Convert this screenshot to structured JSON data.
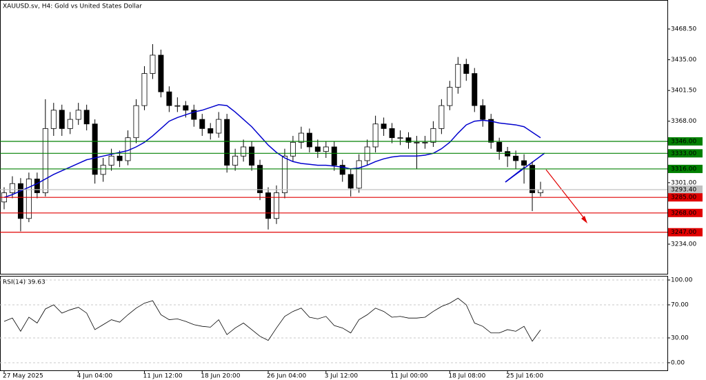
{
  "chart_data": [
    {
      "type": "candlestick",
      "title": "XAUUSD.sv, H4:  Gold vs United States Dollar",
      "categories": [
        "27 May 2025",
        null,
        null,
        null,
        null,
        null,
        null,
        null,
        null,
        "4 Jun 04:00",
        null,
        null,
        null,
        null,
        null,
        null,
        null,
        "11 Jun 12:00",
        null,
        null,
        null,
        null,
        null,
        null,
        "18 Jun 20:00",
        null,
        null,
        null,
        null,
        null,
        null,
        null,
        "26 Jun 04:00",
        null,
        null,
        null,
        null,
        null,
        null,
        "3 Jul 12:00",
        null,
        null,
        null,
        null,
        null,
        null,
        null,
        "11 Jul 00:00",
        null,
        null,
        null,
        null,
        null,
        null,
        "18 Jul 08:00",
        null,
        null,
        null,
        null,
        null,
        null,
        "25 Jul 16:00",
        null,
        null,
        null,
        null
      ],
      "values": [
        [
          3280,
          3296,
          3272,
          3290
        ],
        [
          3290,
          3308,
          3284,
          3300
        ],
        [
          3300,
          3306,
          3248,
          3262
        ],
        [
          3262,
          3312,
          3258,
          3305
        ],
        [
          3305,
          3312,
          3284,
          3290
        ],
        [
          3290,
          3392,
          3286,
          3360
        ],
        [
          3360,
          3388,
          3352,
          3380
        ],
        [
          3380,
          3386,
          3352,
          3360
        ],
        [
          3360,
          3378,
          3354,
          3370
        ],
        [
          3370,
          3388,
          3364,
          3380
        ],
        [
          3380,
          3386,
          3358,
          3365
        ],
        [
          3365,
          3370,
          3300,
          3310
        ],
        [
          3310,
          3328,
          3302,
          3320
        ],
        [
          3320,
          3338,
          3314,
          3330
        ],
        [
          3330,
          3336,
          3318,
          3325
        ],
        [
          3325,
          3358,
          3320,
          3350
        ],
        [
          3350,
          3392,
          3344,
          3385
        ],
        [
          3385,
          3428,
          3380,
          3420
        ],
        [
          3420,
          3452,
          3414,
          3440
        ],
        [
          3440,
          3446,
          3394,
          3400
        ],
        [
          3400,
          3406,
          3378,
          3385
        ],
        [
          3385,
          3394,
          3378,
          3385
        ],
        [
          3385,
          3390,
          3372,
          3380
        ],
        [
          3380,
          3386,
          3362,
          3370
        ],
        [
          3370,
          3376,
          3352,
          3360
        ],
        [
          3360,
          3366,
          3348,
          3355
        ],
        [
          3355,
          3378,
          3350,
          3370
        ],
        [
          3370,
          3376,
          3312,
          3320
        ],
        [
          3320,
          3338,
          3314,
          3330
        ],
        [
          3330,
          3348,
          3324,
          3340
        ],
        [
          3340,
          3346,
          3314,
          3320
        ],
        [
          3320,
          3326,
          3282,
          3290
        ],
        [
          3290,
          3296,
          3250,
          3262
        ],
        [
          3262,
          3298,
          3256,
          3290
        ],
        [
          3290,
          3338,
          3284,
          3330
        ],
        [
          3330,
          3352,
          3324,
          3345
        ],
        [
          3345,
          3362,
          3338,
          3355
        ],
        [
          3355,
          3360,
          3334,
          3340
        ],
        [
          3340,
          3348,
          3328,
          3335
        ],
        [
          3335,
          3346,
          3328,
          3340
        ],
        [
          3340,
          3346,
          3314,
          3320
        ],
        [
          3320,
          3326,
          3302,
          3310
        ],
        [
          3310,
          3316,
          3286,
          3295
        ],
        [
          3295,
          3332,
          3290,
          3325
        ],
        [
          3325,
          3348,
          3320,
          3340
        ],
        [
          3340,
          3374,
          3334,
          3365
        ],
        [
          3365,
          3372,
          3352,
          3360
        ],
        [
          3360,
          3366,
          3344,
          3350
        ],
        [
          3350,
          3358,
          3342,
          3350
        ],
        [
          3350,
          3356,
          3338,
          3345
        ],
        [
          3345,
          3352,
          3316,
          3345
        ],
        [
          3345,
          3352,
          3338,
          3345
        ],
        [
          3345,
          3368,
          3340,
          3360
        ],
        [
          3360,
          3392,
          3354,
          3385
        ],
        [
          3385,
          3412,
          3380,
          3405
        ],
        [
          3405,
          3438,
          3398,
          3430
        ],
        [
          3430,
          3436,
          3412,
          3420
        ],
        [
          3420,
          3426,
          3378,
          3385
        ],
        [
          3385,
          3392,
          3362,
          3370
        ],
        [
          3370,
          3376,
          3338,
          3345
        ],
        [
          3345,
          3350,
          3326,
          3335
        ],
        [
          3335,
          3340,
          3318,
          3330
        ],
        [
          3330,
          3336,
          3316,
          3325
        ],
        [
          3325,
          3332,
          3300,
          3320
        ],
        [
          3320,
          3324,
          3270,
          3290
        ],
        [
          3290,
          3302,
          3286,
          3293.4
        ]
      ],
      "up_color": "#ffffff",
      "down_color": "#000000",
      "series": [
        {
          "color": "#0000cd",
          "values": [
            3285,
            3288,
            3292,
            3296,
            3300,
            3305,
            3310,
            3314,
            3318,
            3322,
            3326,
            3328,
            3330,
            3332,
            3334,
            3336,
            3340,
            3345,
            3352,
            3360,
            3368,
            3372,
            3375,
            3378,
            3380,
            3383,
            3386,
            3385,
            3378,
            3370,
            3362,
            3352,
            3342,
            3334,
            3328,
            3324,
            3322,
            3321,
            3320,
            3320,
            3319,
            3318,
            3316,
            3317,
            3320,
            3324,
            3327,
            3329,
            3330,
            3330,
            3330,
            3331,
            3333,
            3338,
            3345,
            3355,
            3364,
            3368,
            3369,
            3368,
            3366,
            3365,
            3364,
            3362,
            3356,
            3350
          ]
        }
      ],
      "ylim": [
        3201.7,
        3500.1
      ],
      "yticks": [
        {
          "value": 3468.5,
          "label": "3468.50"
        },
        {
          "value": 3435,
          "label": "3435.00"
        },
        {
          "value": 3401.5,
          "label": "3401.50"
        },
        {
          "value": 3368,
          "label": "3368.00"
        },
        {
          "value": 3301,
          "label": "3301.00"
        },
        {
          "value": 3234,
          "label": "3234.00"
        }
      ],
      "levels": [
        {
          "value": 3346,
          "label": "3346.00",
          "color": "#008000"
        },
        {
          "value": 3333,
          "label": "3333.00",
          "color": "#008000"
        },
        {
          "value": 3316,
          "label": "3316.00",
          "color": "#008000"
        },
        {
          "value": 3285,
          "label": "3285.00",
          "color": "#e00000"
        },
        {
          "value": 3268,
          "label": "3268.00",
          "color": "#e00000"
        },
        {
          "value": 3247,
          "label": "3247.00",
          "color": "#e00000"
        }
      ],
      "last_price": {
        "value": 3293.4,
        "label": "3293.40",
        "color": "#c0c0c0"
      }
    },
    {
      "type": "line",
      "title": "RSI(14) 39.63",
      "color": "#000000",
      "values": [
        50,
        54,
        38,
        55,
        48,
        65,
        70,
        60,
        64,
        67,
        60,
        40,
        46,
        52,
        49,
        58,
        66,
        72,
        75,
        58,
        52,
        53,
        50,
        46,
        44,
        43,
        52,
        34,
        42,
        48,
        40,
        32,
        27,
        42,
        56,
        62,
        66,
        55,
        53,
        56,
        45,
        42,
        36,
        52,
        58,
        66,
        62,
        55,
        56,
        54,
        54,
        55,
        62,
        68,
        72,
        78,
        70,
        48,
        44,
        36,
        36,
        40,
        38,
        44,
        26,
        39.63
      ],
      "ylim": [
        -9.2,
        105
      ],
      "yticks": [
        {
          "value": 100,
          "label": "100.00"
        },
        {
          "value": 70,
          "label": "70.00"
        },
        {
          "value": 30,
          "label": "30.00"
        },
        {
          "value": 0,
          "label": "0.00"
        }
      ]
    }
  ]
}
